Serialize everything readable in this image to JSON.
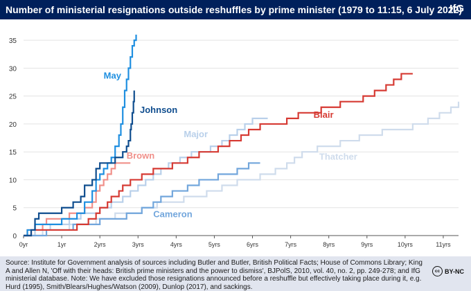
{
  "header": {
    "title": "Number of ministerial resignations outside reshuffles by prime minister (1979 to 11:15, 6 July 2022)",
    "logo": "IfG"
  },
  "footer": {
    "source": "Source: Institute for Government analysis of sources including Butler and Butler, British Political Facts; House of Commons Library; King A and Allen N, 'Off with their heads: British prime ministers and the power to dismiss', BJPolS, 2010, vol. 40, no. 2, pp. 249-278; and IfG ministerial database. Note: We have excluded those resignations announced before a reshuffle but effectively taking place during it, e.g. Hurd (1995), Smith/Blears/Hughes/Watson (2009), Dunlop (2017), and sackings.",
    "license_symbol": "cc",
    "license_text": "BY-NC"
  },
  "chart_data": {
    "type": "line",
    "step": true,
    "title": "Number of ministerial resignations outside reshuffles by prime minister (1979 to 11:15, 6 July 2022)",
    "xlabel": "",
    "ylabel": "",
    "xlim": [
      0,
      11.4
    ],
    "ylim": [
      0,
      37
    ],
    "x_ticks": [
      0,
      1,
      2,
      3,
      4,
      5,
      6,
      7,
      8,
      9,
      10,
      11
    ],
    "x_tick_labels": [
      "0yr",
      "1yr",
      "2yrs",
      "3yrs",
      "4yrs",
      "5yrs",
      "6yrs",
      "7yrs",
      "8yrs",
      "9yrs",
      "10yrs",
      "11yrs"
    ],
    "y_ticks": [
      0,
      5,
      10,
      15,
      20,
      25,
      30,
      35
    ],
    "grid": "horizontal",
    "legend": "direct labels",
    "series": [
      {
        "name": "Thatcher",
        "color": "#cfdcec",
        "label_at": [
          7.75,
          13.6
        ],
        "points": [
          [
            0,
            0
          ],
          [
            0.5,
            1
          ],
          [
            1.2,
            2
          ],
          [
            1.9,
            3
          ],
          [
            2.4,
            4
          ],
          [
            3.1,
            5
          ],
          [
            3.5,
            6
          ],
          [
            4.2,
            7
          ],
          [
            4.8,
            8
          ],
          [
            5.2,
            9
          ],
          [
            5.6,
            10
          ],
          [
            6.2,
            11
          ],
          [
            6.6,
            12
          ],
          [
            6.9,
            13
          ],
          [
            7.1,
            14
          ],
          [
            7.3,
            15
          ],
          [
            7.7,
            16
          ],
          [
            8.3,
            17
          ],
          [
            8.8,
            18
          ],
          [
            9.4,
            19
          ],
          [
            10.2,
            20
          ],
          [
            10.6,
            21
          ],
          [
            10.9,
            22
          ],
          [
            11.2,
            23
          ],
          [
            11.4,
            24
          ]
        ]
      },
      {
        "name": "Major",
        "color": "#b9d0ea",
        "label_at": [
          4.2,
          17.6
        ],
        "points": [
          [
            0,
            0
          ],
          [
            0.3,
            1
          ],
          [
            0.7,
            2
          ],
          [
            1.2,
            3
          ],
          [
            1.5,
            4
          ],
          [
            2,
            5
          ],
          [
            2.3,
            6
          ],
          [
            2.6,
            7
          ],
          [
            2.8,
            8
          ],
          [
            3.0,
            9
          ],
          [
            3.2,
            10
          ],
          [
            3.4,
            11
          ],
          [
            3.6,
            12
          ],
          [
            3.8,
            13
          ],
          [
            4.1,
            14
          ],
          [
            4.4,
            15
          ],
          [
            4.9,
            16
          ],
          [
            5.2,
            17
          ],
          [
            5.4,
            18
          ],
          [
            5.6,
            19
          ],
          [
            5.8,
            20
          ],
          [
            6.0,
            21
          ],
          [
            6.4,
            21
          ]
        ]
      },
      {
        "name": "Cameron",
        "color": "#72a6dc",
        "label_at": [
          3.4,
          3.3
        ],
        "points": [
          [
            0,
            0
          ],
          [
            0.6,
            1
          ],
          [
            1.3,
            2
          ],
          [
            2.0,
            3
          ],
          [
            2.7,
            4
          ],
          [
            3.1,
            5
          ],
          [
            3.4,
            6
          ],
          [
            3.6,
            7
          ],
          [
            3.9,
            8
          ],
          [
            4.3,
            9
          ],
          [
            4.6,
            10
          ],
          [
            5.1,
            11
          ],
          [
            5.6,
            12
          ],
          [
            5.9,
            13
          ],
          [
            6.2,
            13
          ]
        ]
      },
      {
        "name": "Brown",
        "color": "#f0908a",
        "label_at": [
          2.7,
          13.8
        ],
        "points": [
          [
            0,
            0
          ],
          [
            0.1,
            1
          ],
          [
            0.5,
            2
          ],
          [
            0.6,
            3
          ],
          [
            1.2,
            4
          ],
          [
            1.6,
            5
          ],
          [
            1.8,
            6
          ],
          [
            1.9,
            8
          ],
          [
            2.0,
            9
          ],
          [
            2.1,
            10
          ],
          [
            2.2,
            11
          ],
          [
            2.3,
            12
          ],
          [
            2.4,
            13
          ],
          [
            2.8,
            13
          ]
        ]
      },
      {
        "name": "Blair",
        "color": "#d63a33",
        "label_at": [
          7.6,
          21.1
        ],
        "points": [
          [
            0,
            0
          ],
          [
            0.2,
            1
          ],
          [
            0.8,
            1
          ],
          [
            1.4,
            2
          ],
          [
            1.7,
            3
          ],
          [
            1.9,
            4
          ],
          [
            2.0,
            5
          ],
          [
            2.2,
            6
          ],
          [
            2.3,
            7
          ],
          [
            2.5,
            8
          ],
          [
            2.6,
            9
          ],
          [
            2.8,
            10
          ],
          [
            3.1,
            11
          ],
          [
            3.4,
            12
          ],
          [
            3.9,
            13
          ],
          [
            4.3,
            14
          ],
          [
            4.6,
            15
          ],
          [
            5.1,
            16
          ],
          [
            5.4,
            17
          ],
          [
            5.7,
            18
          ],
          [
            5.9,
            19
          ],
          [
            6.2,
            20
          ],
          [
            6.9,
            21
          ],
          [
            7.2,
            22
          ],
          [
            7.8,
            23
          ],
          [
            8.3,
            24
          ],
          [
            8.9,
            25
          ],
          [
            9.2,
            26
          ],
          [
            9.5,
            27
          ],
          [
            9.7,
            28
          ],
          [
            9.9,
            29
          ],
          [
            10.2,
            29
          ]
        ]
      },
      {
        "name": "May",
        "color": "#1f8fe0",
        "label_at": [
          2.1,
          28.1
        ],
        "points": [
          [
            0,
            0
          ],
          [
            0.1,
            1
          ],
          [
            0.3,
            2
          ],
          [
            1.0,
            3
          ],
          [
            1.4,
            4
          ],
          [
            1.6,
            6
          ],
          [
            1.8,
            8
          ],
          [
            1.9,
            10
          ],
          [
            2.0,
            11
          ],
          [
            2.1,
            12
          ],
          [
            2.2,
            13
          ],
          [
            2.3,
            14
          ],
          [
            2.4,
            16
          ],
          [
            2.5,
            18
          ],
          [
            2.55,
            20
          ],
          [
            2.6,
            23
          ],
          [
            2.65,
            26
          ],
          [
            2.7,
            28
          ],
          [
            2.75,
            30
          ],
          [
            2.8,
            32
          ],
          [
            2.85,
            34
          ],
          [
            2.9,
            35
          ],
          [
            2.95,
            36
          ]
        ]
      },
      {
        "name": "Johnson",
        "color": "#0f4d8e",
        "label_at": [
          3.05,
          22.0
        ],
        "points": [
          [
            0,
            0
          ],
          [
            0.2,
            1
          ],
          [
            0.3,
            3
          ],
          [
            0.4,
            4
          ],
          [
            1.0,
            5
          ],
          [
            1.3,
            6
          ],
          [
            1.5,
            7
          ],
          [
            1.6,
            9
          ],
          [
            1.8,
            10
          ],
          [
            1.9,
            12
          ],
          [
            2.0,
            13
          ],
          [
            2.4,
            14
          ],
          [
            2.6,
            15
          ],
          [
            2.7,
            16
          ],
          [
            2.75,
            17
          ],
          [
            2.8,
            19
          ],
          [
            2.82,
            20
          ],
          [
            2.85,
            22
          ],
          [
            2.88,
            24
          ],
          [
            2.9,
            26
          ]
        ]
      }
    ]
  }
}
